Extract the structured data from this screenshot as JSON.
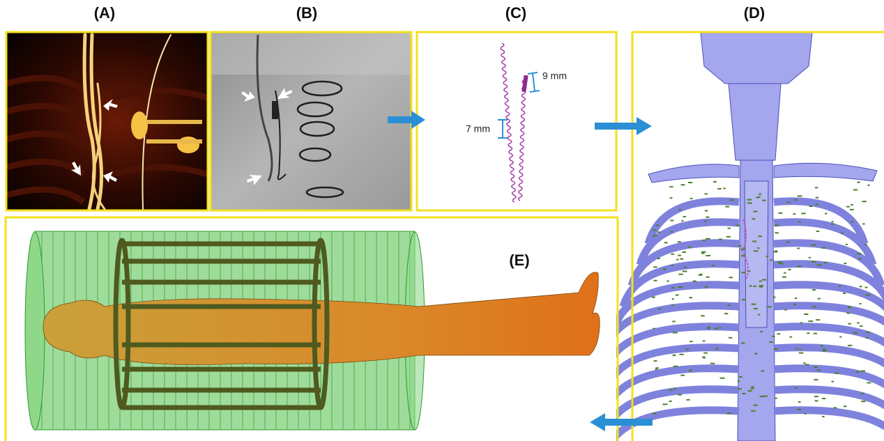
{
  "panels": [
    {
      "label": "(A)"
    },
    {
      "label": "(B)"
    },
    {
      "label": "(C)",
      "measurements": [
        "7 mm",
        "9 mm"
      ]
    },
    {
      "label": "(D)"
    },
    {
      "label": "(E)"
    }
  ]
}
